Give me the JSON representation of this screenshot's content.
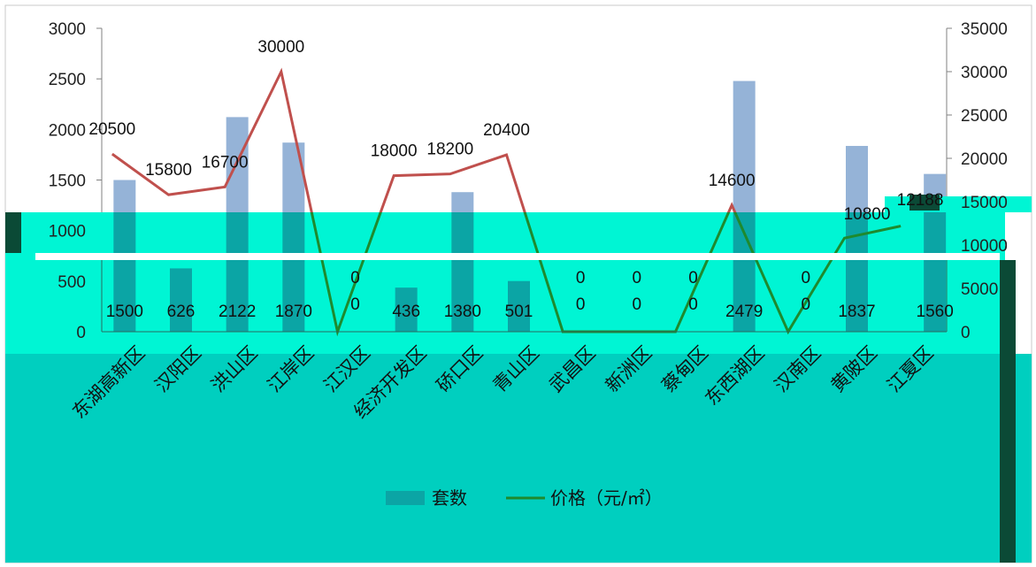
{
  "chart_data": {
    "type": "bar",
    "categories": [
      "东湖高新区",
      "汉阳区",
      "洪山区",
      "江岸区",
      "江汉区",
      "经济开发区",
      "硚口区",
      "青山区",
      "武昌区",
      "新洲区",
      "蔡甸区",
      "东西湖区",
      "汉南区",
      "黄陂区",
      "江夏区"
    ],
    "series": [
      {
        "name": "套数",
        "type": "bar",
        "axis": "left",
        "color": "#95B3D7",
        "values": [
          1500,
          626,
          2122,
          1870,
          0,
          436,
          1380,
          501,
          0,
          0,
          0,
          2479,
          0,
          1837,
          1560
        ]
      },
      {
        "name": "价格（元/㎡）",
        "type": "line",
        "axis": "right",
        "color": "#C0504D",
        "values": [
          20500,
          15800,
          16700,
          30000,
          0,
          18000,
          18200,
          20400,
          0,
          0,
          0,
          14600,
          0,
          10800,
          12188
        ]
      }
    ],
    "bar_value_labels": [
      "1500",
      "626",
      "2122",
      "1870",
      "0",
      "436",
      "1380",
      "501",
      "0",
      "0",
      "0",
      "2479",
      "0",
      "1837",
      "1560"
    ],
    "line_value_labels": [
      "20500",
      "15800",
      "16700",
      "30000",
      "0",
      "18000",
      "18200",
      "20400",
      "0",
      "0",
      "0",
      "14600",
      "0",
      "10800",
      "12188"
    ],
    "yaxis_left": {
      "ticks": [
        "0",
        "500",
        "1000",
        "1500",
        "2000",
        "2500",
        "3000"
      ],
      "ylim": [
        0,
        3000
      ]
    },
    "yaxis_right": {
      "ticks": [
        "0",
        "5000",
        "10000",
        "15000",
        "20000",
        "25000",
        "30000",
        "35000"
      ],
      "ylim": [
        0,
        35000
      ]
    },
    "legend": {
      "position": "bottom"
    },
    "grid": false,
    "overlay_colors": {
      "cyan_band": "#00F5D4",
      "teal_band": "#00CFBF",
      "line_overlay": "#1E8A2E",
      "dark_strip": "#0B4A36",
      "bar_overlay": "#0BA5A5"
    }
  }
}
